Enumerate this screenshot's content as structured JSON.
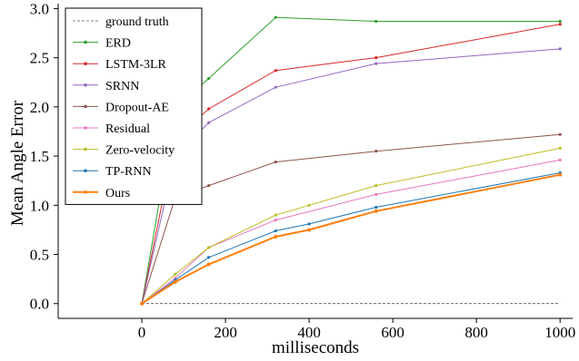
{
  "chart_data": {
    "type": "line",
    "xlabel": "milliseconds",
    "ylabel": "Mean Angle Error",
    "xlim": [
      -200,
      1030
    ],
    "ylim": [
      -0.15,
      3.05
    ],
    "xticks": [
      0,
      200,
      400,
      600,
      800,
      1000
    ],
    "xtick_labels": [
      "0",
      "200",
      "400",
      "600",
      "800",
      "1000"
    ],
    "yticks": [
      0.0,
      0.5,
      1.0,
      1.5,
      2.0,
      2.5,
      3.0
    ],
    "ytick_labels": [
      "0.0",
      "0.5",
      "1.0",
      "1.5",
      "2.0",
      "2.5",
      "3.0"
    ],
    "grid": false,
    "legend_position": "top-left",
    "series": [
      {
        "name": "ground truth",
        "color": "#555555",
        "style": "dashed",
        "marker": "none",
        "x": [
          0,
          1000
        ],
        "y": [
          0,
          0
        ]
      },
      {
        "name": "ERD",
        "color": "#2ca02c",
        "style": "solid",
        "marker": "dot",
        "x": [
          0,
          80,
          160,
          320,
          560,
          1000
        ],
        "y": [
          0,
          1.98,
          2.29,
          2.91,
          2.87,
          2.87
        ]
      },
      {
        "name": "LSTM-3LR",
        "color": "#d62728",
        "style": "solid",
        "marker": "dot",
        "x": [
          0,
          80,
          160,
          320,
          560,
          1000
        ],
        "y": [
          0,
          1.68,
          1.98,
          2.37,
          2.5,
          2.84
        ]
      },
      {
        "name": "SRNN",
        "color": "#9467bd",
        "style": "solid",
        "marker": "dot",
        "x": [
          0,
          80,
          160,
          320,
          560,
          1000
        ],
        "y": [
          0,
          1.5,
          1.84,
          2.2,
          2.44,
          2.59
        ]
      },
      {
        "name": "Dropout-AE",
        "color": "#8c564b",
        "style": "solid",
        "marker": "dot",
        "x": [
          0,
          80,
          160,
          320,
          560,
          1000
        ],
        "y": [
          0,
          1.08,
          1.2,
          1.44,
          1.55,
          1.72
        ]
      },
      {
        "name": "Residual",
        "color": "#e377c2",
        "style": "solid",
        "marker": "dot",
        "x": [
          0,
          80,
          160,
          320,
          560,
          1000
        ],
        "y": [
          0,
          0.26,
          0.57,
          0.85,
          1.11,
          1.46
        ]
      },
      {
        "name": "Zero-velocity",
        "color": "#bcbd22",
        "style": "solid",
        "marker": "dot",
        "x": [
          0,
          80,
          160,
          320,
          400,
          560,
          1000
        ],
        "y": [
          0,
          0.3,
          0.57,
          0.9,
          1.0,
          1.2,
          1.58
        ]
      },
      {
        "name": "TP-RNN",
        "color": "#1f77b4",
        "style": "solid",
        "marker": "dot",
        "x": [
          0,
          80,
          160,
          320,
          400,
          560,
          1000
        ],
        "y": [
          0,
          0.24,
          0.47,
          0.74,
          0.81,
          0.98,
          1.33
        ]
      },
      {
        "name": "Ours",
        "color": "#ff7f0e",
        "style": "solid-thick",
        "marker": "dot",
        "x": [
          0,
          80,
          160,
          320,
          400,
          560,
          1000
        ],
        "y": [
          0,
          0.22,
          0.4,
          0.68,
          0.75,
          0.94,
          1.31
        ]
      }
    ]
  }
}
